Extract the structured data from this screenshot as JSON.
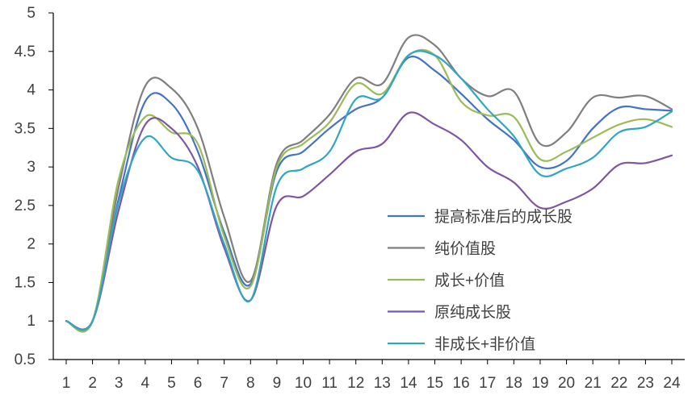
{
  "chart_data": {
    "type": "line",
    "title": "",
    "xlabel": "",
    "ylabel": "",
    "ylim": [
      0.5,
      5
    ],
    "yticks": [
      "0.5",
      "1",
      "1.5",
      "2",
      "2.5",
      "3",
      "3.5",
      "4",
      "4.5",
      "5"
    ],
    "categories": [
      "1",
      "2",
      "3",
      "4",
      "5",
      "6",
      "7",
      "8",
      "9",
      "10",
      "11",
      "12",
      "13",
      "14",
      "15",
      "16",
      "17",
      "18",
      "19",
      "20",
      "21",
      "22",
      "23",
      "24"
    ],
    "legend_position": "right-inside",
    "grid": false,
    "series": [
      {
        "name": "提高标准后的成长股",
        "color": "#4472C4",
        "values": [
          1.0,
          1.0,
          2.6,
          3.85,
          3.82,
          3.2,
          2.15,
          1.48,
          2.95,
          3.2,
          3.5,
          3.75,
          3.9,
          4.42,
          4.25,
          3.95,
          3.62,
          3.35,
          3.0,
          3.08,
          3.5,
          3.77,
          3.75,
          3.73
        ]
      },
      {
        "name": "纯价值股",
        "color": "#7F7F7F",
        "values": [
          1.0,
          1.0,
          2.75,
          4.05,
          4.02,
          3.5,
          2.35,
          1.52,
          3.05,
          3.35,
          3.68,
          4.15,
          4.08,
          4.68,
          4.58,
          4.15,
          3.92,
          3.98,
          3.3,
          3.45,
          3.9,
          3.9,
          3.92,
          3.75
        ]
      },
      {
        "name": "成长+价值",
        "color": "#9BBB59",
        "values": [
          1.0,
          1.0,
          2.85,
          3.65,
          3.45,
          3.3,
          2.1,
          1.45,
          3.0,
          3.3,
          3.58,
          4.08,
          3.95,
          4.45,
          4.45,
          3.85,
          3.67,
          3.65,
          3.1,
          3.2,
          3.38,
          3.55,
          3.62,
          3.52
        ]
      },
      {
        "name": "原纯成长股",
        "color": "#7E56A3",
        "values": [
          1.0,
          1.0,
          2.45,
          3.55,
          3.5,
          3.0,
          1.95,
          1.27,
          2.5,
          2.62,
          2.9,
          3.2,
          3.3,
          3.7,
          3.55,
          3.35,
          3.0,
          2.8,
          2.47,
          2.55,
          2.72,
          3.03,
          3.05,
          3.15
        ]
      },
      {
        "name": "非成长+非价值",
        "color": "#31A6C4",
        "values": [
          1.0,
          1.0,
          2.55,
          3.38,
          3.12,
          2.95,
          2.0,
          1.27,
          2.75,
          2.98,
          3.2,
          3.88,
          3.9,
          4.45,
          4.45,
          4.15,
          3.75,
          3.4,
          2.9,
          2.98,
          3.12,
          3.45,
          3.52,
          3.72
        ]
      }
    ]
  }
}
